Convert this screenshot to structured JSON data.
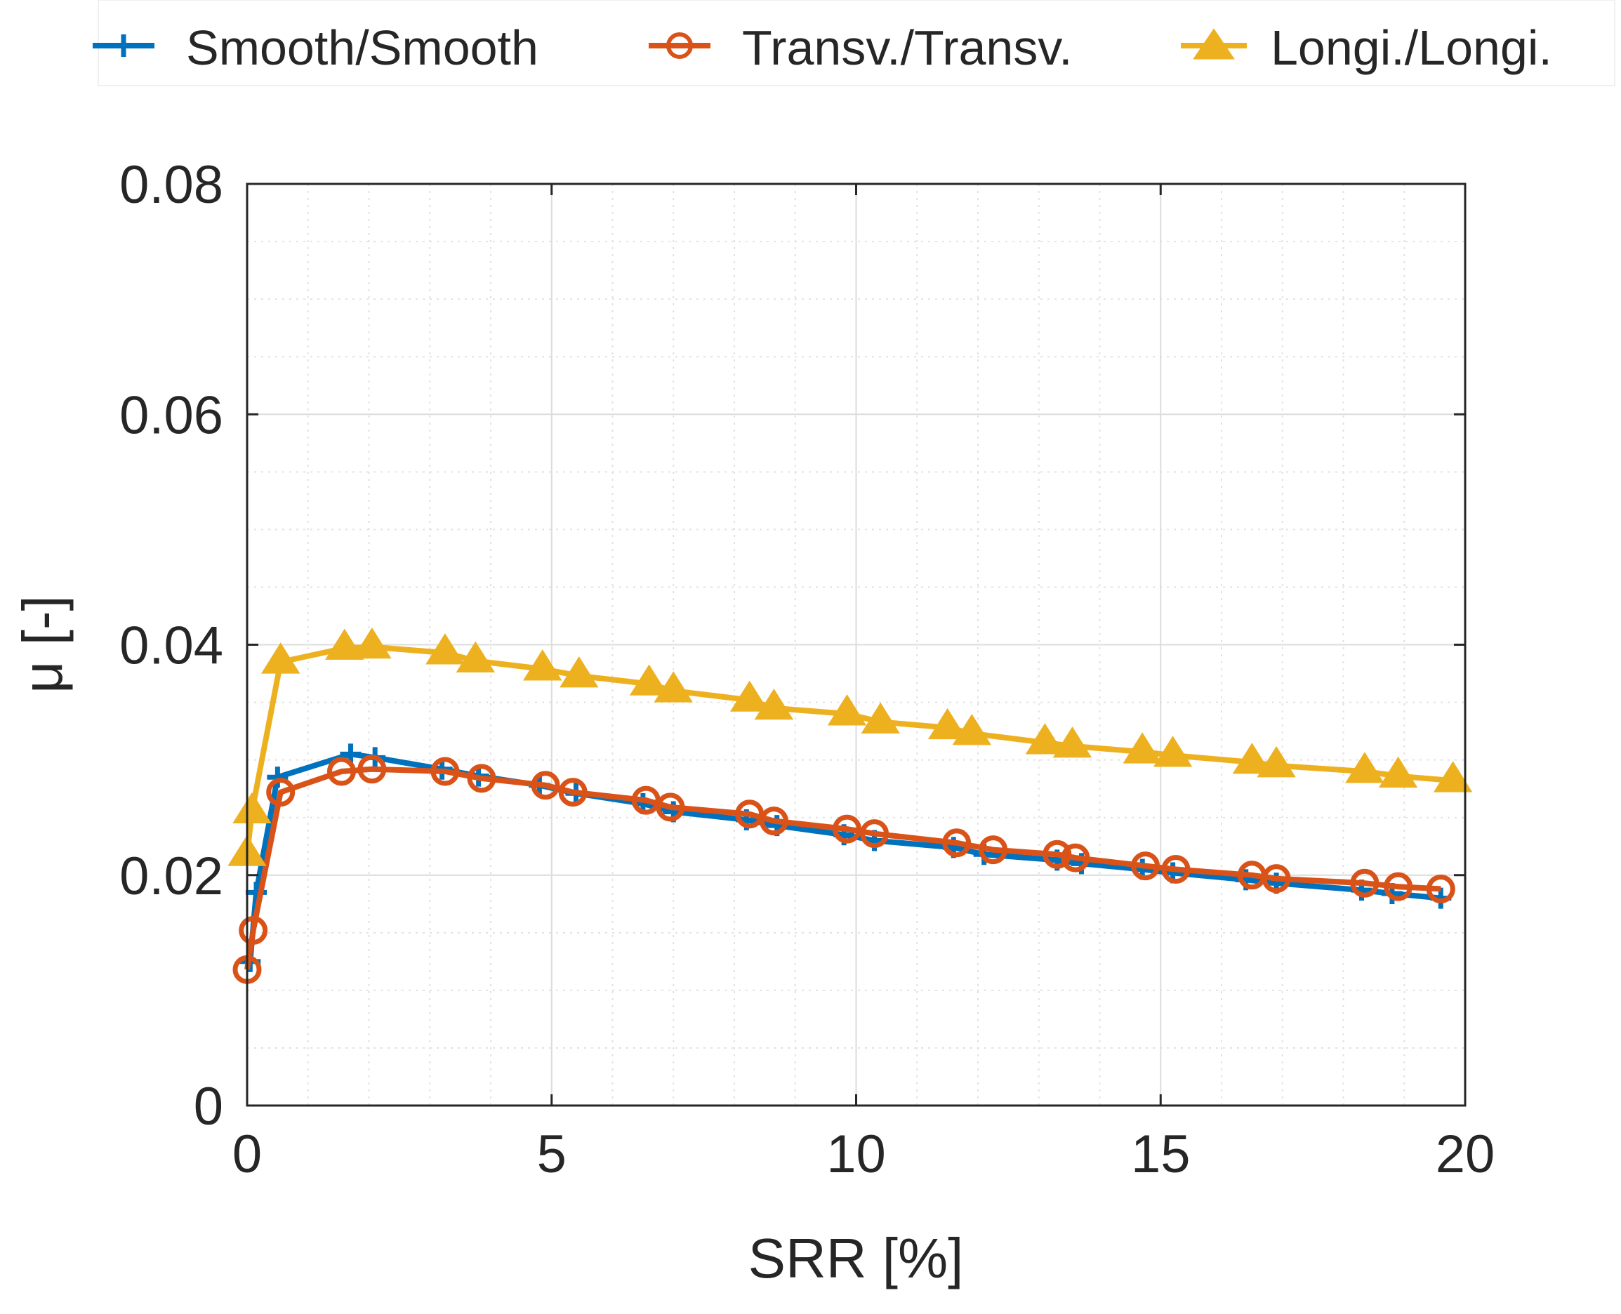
{
  "chart_data": {
    "type": "line",
    "title": "",
    "xlabel": "SRR [%]",
    "ylabel": "μ [-]",
    "xlim": [
      0,
      20
    ],
    "ylim": [
      0,
      0.08
    ],
    "xticks": [
      0,
      5,
      10,
      15,
      20
    ],
    "xtick_labels": [
      "0",
      "5",
      "10",
      "15",
      "20"
    ],
    "yticks": [
      0,
      0.02,
      0.04,
      0.06,
      0.08
    ],
    "ytick_labels": [
      "0",
      "0.02",
      "0.04",
      "0.06",
      "0.08"
    ],
    "grid": true,
    "minor_grid": true,
    "legend_position": "top",
    "series": [
      {
        "name": "Smooth/Smooth",
        "color": "#0072BD",
        "marker": "plus",
        "x": [
          0.05,
          0.15,
          0.5,
          1.7,
          2.1,
          3.2,
          3.8,
          4.8,
          5.4,
          6.5,
          7.0,
          8.2,
          8.7,
          9.8,
          10.3,
          11.6,
          12.1,
          13.3,
          13.7,
          14.7,
          15.2,
          16.4,
          16.9,
          18.3,
          18.8,
          19.6
        ],
        "y": [
          0.0125,
          0.0185,
          0.0285,
          0.0305,
          0.0302,
          0.0292,
          0.0286,
          0.0278,
          0.0271,
          0.0262,
          0.0255,
          0.0248,
          0.0243,
          0.0235,
          0.023,
          0.0224,
          0.0218,
          0.0213,
          0.021,
          0.0205,
          0.0202,
          0.0196,
          0.0193,
          0.0187,
          0.0184,
          0.018
        ]
      },
      {
        "name": "Transv./Transv.",
        "color": "#D95319",
        "marker": "circle",
        "x": [
          0.0,
          0.1,
          0.55,
          1.55,
          2.05,
          3.25,
          3.85,
          4.9,
          5.35,
          6.55,
          6.95,
          8.25,
          8.65,
          9.85,
          10.3,
          11.65,
          12.25,
          13.3,
          13.6,
          14.75,
          15.25,
          16.5,
          16.9,
          18.35,
          18.9,
          19.6
        ],
        "y": [
          0.0118,
          0.0152,
          0.0272,
          0.029,
          0.0292,
          0.029,
          0.0284,
          0.0278,
          0.0272,
          0.0265,
          0.0259,
          0.0253,
          0.0247,
          0.024,
          0.0236,
          0.0228,
          0.0222,
          0.0218,
          0.0215,
          0.0208,
          0.0205,
          0.02,
          0.0197,
          0.0193,
          0.019,
          0.0188
        ]
      },
      {
        "name": "Longi./Longi.",
        "color": "#EDB120",
        "marker": "triangle",
        "x": [
          0.0,
          0.08,
          0.55,
          1.6,
          2.05,
          3.25,
          3.75,
          4.85,
          5.45,
          6.6,
          7.0,
          8.25,
          8.65,
          9.85,
          10.4,
          11.5,
          11.9,
          13.1,
          13.55,
          14.7,
          15.2,
          16.5,
          16.9,
          18.35,
          18.9,
          19.8
        ],
        "y": [
          0.0218,
          0.0255,
          0.0385,
          0.0397,
          0.0398,
          0.0393,
          0.0386,
          0.0379,
          0.0373,
          0.0366,
          0.036,
          0.0352,
          0.0345,
          0.034,
          0.0333,
          0.0328,
          0.0323,
          0.0315,
          0.0312,
          0.0307,
          0.0304,
          0.0298,
          0.0295,
          0.029,
          0.0286,
          0.0282
        ]
      }
    ]
  }
}
